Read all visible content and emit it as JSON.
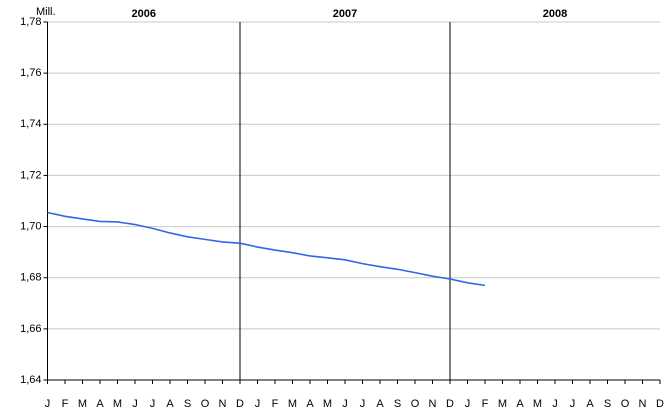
{
  "chart_data": {
    "type": "line",
    "y_unit": "Mill.",
    "years": [
      "2006",
      "2007",
      "2008"
    ],
    "categories": [
      "J",
      "F",
      "M",
      "A",
      "M",
      "J",
      "J",
      "A",
      "S",
      "O",
      "N",
      "D",
      "J",
      "F",
      "M",
      "A",
      "M",
      "J",
      "J",
      "A",
      "S",
      "O",
      "N",
      "D",
      "J",
      "F",
      "M",
      "A",
      "M",
      "J",
      "J",
      "A",
      "S",
      "O",
      "N",
      "D"
    ],
    "series": [
      {
        "color": "#3366e6",
        "values": [
          1.7055,
          1.704,
          1.703,
          1.702,
          1.7018,
          1.7008,
          1.6993,
          1.6975,
          1.696,
          1.695,
          1.694,
          1.6935,
          1.692,
          1.6908,
          1.6898,
          1.6885,
          1.6878,
          1.687,
          1.6855,
          1.6843,
          1.6833,
          1.682,
          1.6806,
          1.6795,
          1.678,
          1.677,
          null,
          null,
          null,
          null,
          null,
          null,
          null,
          null,
          null,
          null
        ]
      }
    ],
    "ylim": [
      1.64,
      1.78
    ],
    "yticks": [
      {
        "value": 1.64,
        "label": "1,64"
      },
      {
        "value": 1.66,
        "label": "1,66"
      },
      {
        "value": 1.68,
        "label": "1,68"
      },
      {
        "value": 1.7,
        "label": "1,70"
      },
      {
        "value": 1.72,
        "label": "1,72"
      },
      {
        "value": 1.74,
        "label": "1,74"
      },
      {
        "value": 1.76,
        "label": "1,76"
      },
      {
        "value": 1.78,
        "label": "1,78"
      }
    ],
    "grid": true
  }
}
